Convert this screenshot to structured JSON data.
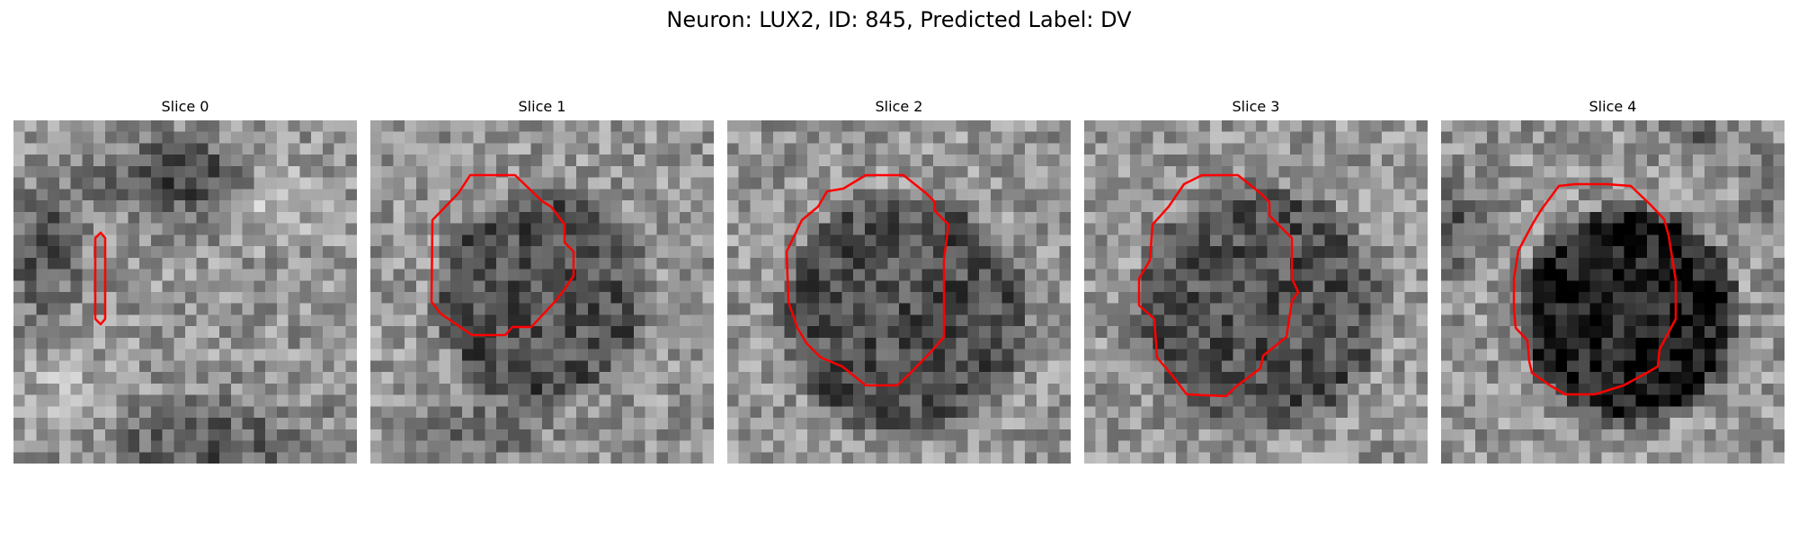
{
  "title": "Neuron: LUX2, ID: 845, Predicted Label: DV",
  "contour_color": "#ff0000",
  "colormap": "gray",
  "slices": [
    {
      "label": "Slice 0",
      "mask_shape": "thin vertical sliver"
    },
    {
      "label": "Slice 1",
      "mask_shape": "octagonal blob"
    },
    {
      "label": "Slice 2",
      "mask_shape": "octagonal blob"
    },
    {
      "label": "Slice 3",
      "mask_shape": "octagonal blob"
    },
    {
      "label": "Slice 4",
      "mask_shape": "octagonal blob"
    }
  ]
}
